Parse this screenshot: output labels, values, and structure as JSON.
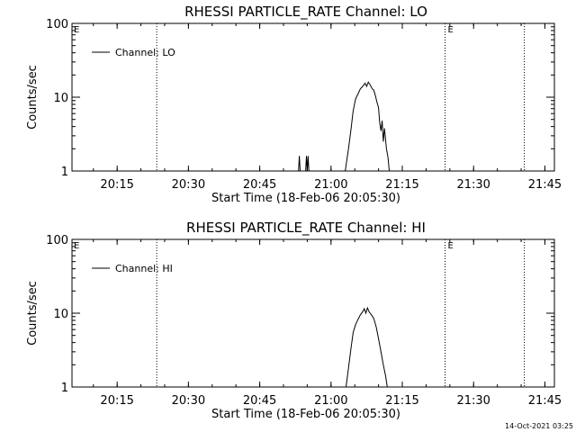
{
  "timestamp": "14-Oct-2021 03:25",
  "chart_data": [
    {
      "type": "line",
      "title": "RHESSI PARTICLE_RATE Channel: LO",
      "xlabel": "Start Time (18-Feb-06 20:05:30)",
      "ylabel": "Counts/sec",
      "yscale": "log",
      "ylim": [
        1,
        100
      ],
      "xlim": [
        "20:05:30",
        "21:47:00"
      ],
      "xticks": [
        "20:15",
        "20:30",
        "20:45",
        "21:00",
        "21:15",
        "21:30",
        "21:45"
      ],
      "yticks": [
        "1",
        "10",
        "100"
      ],
      "grid": false,
      "legend_position": "top-left",
      "series": [
        {
          "name": "Channel: LO",
          "color": "#000000",
          "points": [
            [
              "20:53:10",
              1
            ],
            [
              "20:53:20",
              1.6
            ],
            [
              "20:53:30",
              1
            ],
            [
              "20:54:40",
              1
            ],
            [
              "20:54:50",
              1.6
            ],
            [
              "20:55:00",
              1
            ],
            [
              "20:55:10",
              1.6
            ],
            [
              "20:55:20",
              1
            ],
            [
              "21:03:00",
              1
            ],
            [
              "21:03:40",
              2.0
            ],
            [
              "21:04:10",
              3.5
            ],
            [
              "21:04:40",
              6.5
            ],
            [
              "21:05:10",
              9.5
            ],
            [
              "21:05:40",
              11
            ],
            [
              "21:06:10",
              13
            ],
            [
              "21:06:40",
              14
            ],
            [
              "21:07:10",
              15.5
            ],
            [
              "21:07:30",
              14
            ],
            [
              "21:07:50",
              16
            ],
            [
              "21:08:10",
              15
            ],
            [
              "21:08:40",
              13
            ],
            [
              "21:09:00",
              12.5
            ],
            [
              "21:09:20",
              10.5
            ],
            [
              "21:09:40",
              8.5
            ],
            [
              "21:10:00",
              7.2
            ],
            [
              "21:10:15",
              4.5
            ],
            [
              "21:10:30",
              3.5
            ],
            [
              "21:10:45",
              4.8
            ],
            [
              "21:11:00",
              2.5
            ],
            [
              "21:11:15",
              3.8
            ],
            [
              "21:11:40",
              2.0
            ],
            [
              "21:12:00",
              1.5
            ],
            [
              "21:12:15",
              1
            ]
          ]
        }
      ],
      "markers": [
        {
          "time": "20:23:20",
          "label": ""
        },
        {
          "time": "21:24:00",
          "label": "E"
        },
        {
          "time": "21:40:40",
          "label": ""
        }
      ],
      "corner_label": "E"
    },
    {
      "type": "line",
      "title": "RHESSI PARTICLE_RATE Channel: HI",
      "xlabel": "Start Time (18-Feb-06 20:05:30)",
      "ylabel": "Counts/sec",
      "yscale": "log",
      "ylim": [
        1,
        100
      ],
      "xlim": [
        "20:05:30",
        "21:47:00"
      ],
      "xticks": [
        "20:15",
        "20:30",
        "20:45",
        "21:00",
        "21:15",
        "21:30",
        "21:45"
      ],
      "yticks": [
        "1",
        "10",
        "100"
      ],
      "grid": false,
      "legend_position": "top-left",
      "series": [
        {
          "name": "Channel: HI",
          "color": "#000000",
          "points": [
            [
              "21:03:10",
              1
            ],
            [
              "21:03:40",
              1.8
            ],
            [
              "21:04:10",
              3.2
            ],
            [
              "21:04:40",
              5.5
            ],
            [
              "21:05:10",
              7.0
            ],
            [
              "21:05:40",
              8.2
            ],
            [
              "21:06:10",
              9.5
            ],
            [
              "21:06:40",
              10.5
            ],
            [
              "21:07:00",
              11.5
            ],
            [
              "21:07:20",
              10.0
            ],
            [
              "21:07:40",
              11.8
            ],
            [
              "21:08:00",
              10.5
            ],
            [
              "21:08:30",
              9.5
            ],
            [
              "21:09:00",
              8.5
            ],
            [
              "21:09:30",
              6.5
            ],
            [
              "21:10:00",
              4.5
            ],
            [
              "21:10:30",
              3.0
            ],
            [
              "21:11:00",
              2.0
            ],
            [
              "21:11:30",
              1.4
            ],
            [
              "21:11:50",
              1
            ]
          ]
        }
      ],
      "markers": [
        {
          "time": "20:23:20",
          "label": ""
        },
        {
          "time": "21:24:00",
          "label": "E"
        },
        {
          "time": "21:40:40",
          "label": ""
        }
      ],
      "corner_label": "E"
    }
  ]
}
